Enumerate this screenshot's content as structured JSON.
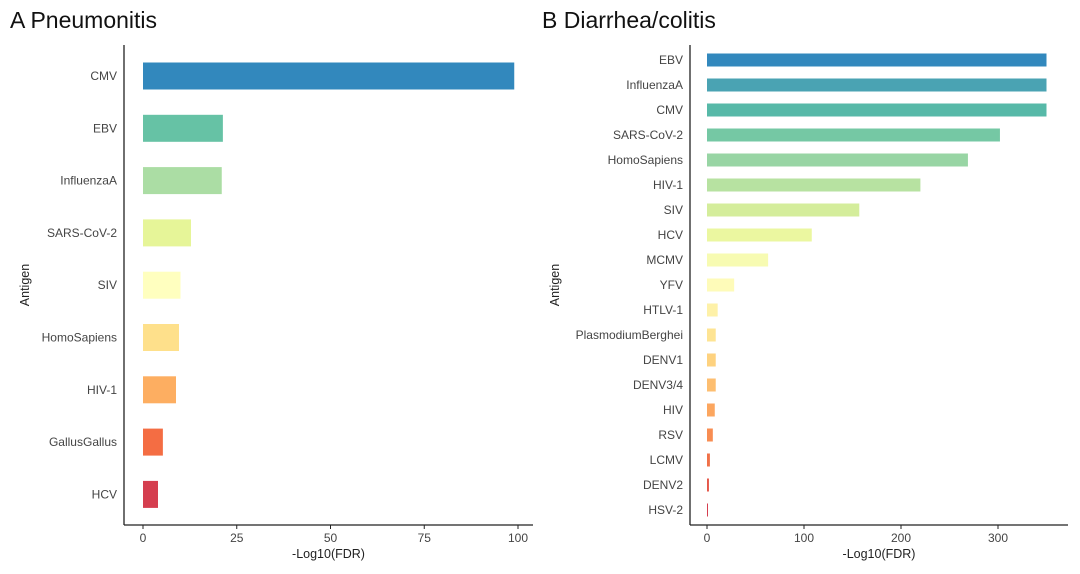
{
  "chart_data": [
    {
      "type": "bar",
      "orientation": "horizontal",
      "title": "A Pneumonitis",
      "xlabel": "-Log10(FDR)",
      "ylabel": "Antigen",
      "xlim": [
        0,
        100
      ],
      "xticks": [
        0,
        25,
        50,
        75,
        100
      ],
      "grid": false,
      "categories": [
        "CMV",
        "EBV",
        "InfluenzaA",
        "SARS-CoV-2",
        "SIV",
        "HomoSapiens",
        "HIV-1",
        "GallusGallus",
        "HCV"
      ],
      "values": [
        99,
        21.3,
        21,
        12.8,
        10,
        9.6,
        8.8,
        5.3,
        4
      ],
      "colors": [
        "#3288bd",
        "#66c2a5",
        "#abdda4",
        "#e6f598",
        "#ffffbf",
        "#fee08b",
        "#fdae61",
        "#f46d43",
        "#d53e4f"
      ]
    },
    {
      "type": "bar",
      "orientation": "horizontal",
      "title": "B Diarrhea/colitis",
      "xlabel": "-Log10(FDR)",
      "ylabel": "Antigen",
      "xlim": [
        0,
        350
      ],
      "xticks": [
        0,
        100,
        200,
        300
      ],
      "grid": false,
      "categories": [
        "EBV",
        "InfluenzaA",
        "CMV",
        "SARS-CoV-2",
        "HomoSapiens",
        "HIV-1",
        "SIV",
        "HCV",
        "MCMV",
        "YFV",
        "HTLV-1",
        "PlasmodiumBerghei",
        "DENV1",
        "DENV3/4",
        "HIV",
        "RSV",
        "LCMV",
        "DENV2",
        "HSV-2"
      ],
      "values": [
        350,
        350,
        350,
        302,
        269,
        220,
        157,
        108,
        63,
        28,
        11,
        9,
        9,
        9,
        8,
        6,
        3,
        2,
        1
      ],
      "colors": [
        "#3288bd",
        "#4aa3b3",
        "#57b9a8",
        "#75c8a4",
        "#98d5a4",
        "#b7e2a1",
        "#d4ed9b",
        "#ebf7a0",
        "#f7fbb2",
        "#fefbb9",
        "#fef1a8",
        "#fee493",
        "#fed27f",
        "#fdbe70",
        "#fca65f",
        "#f88d52",
        "#f07148",
        "#e55749",
        "#d53e4f"
      ]
    }
  ]
}
